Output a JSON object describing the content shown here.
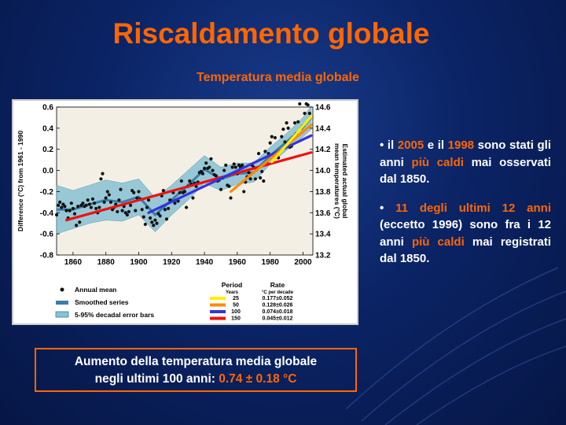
{
  "slide": {
    "title": "Riscaldamento globale",
    "subtitle": "Temperatura media globale"
  },
  "bullets": [
    {
      "parts": [
        {
          "text": "• il ",
          "hl": false
        },
        {
          "text": "2005",
          "hl": true
        },
        {
          "text": " e il ",
          "hl": false
        },
        {
          "text": "1998",
          "hl": true
        },
        {
          "text": " sono stati gli anni ",
          "hl": false
        },
        {
          "text": "più caldi",
          "hl": true
        },
        {
          "text": " mai osservati dal 1850.",
          "hl": false
        }
      ]
    },
    {
      "parts": [
        {
          "text": "• ",
          "hl": false
        },
        {
          "text": "11 degli ultimi 12 anni",
          "hl": true
        },
        {
          "text": " (eccetto 1996) sono fra i 12 anni ",
          "hl": false
        },
        {
          "text": "più caldi",
          "hl": true
        },
        {
          "text": " mai registrati dal 1850.",
          "hl": false
        }
      ]
    }
  ],
  "callout": {
    "line1": "Aumento della temperatura media globale",
    "line2": "negli ultimi 100 anni: ",
    "value": "0.74 ± 0.18 °C"
  },
  "chart_data": {
    "type": "scatter",
    "ylabel_left": "Difference (°C) from 1961 - 1990",
    "ylabel_right": "Estimated actual global mean temperatures (°C)",
    "xlim": [
      1850,
      2006
    ],
    "ylim": [
      -0.8,
      0.6
    ],
    "xticks": [
      1860,
      1880,
      1900,
      1920,
      1940,
      1960,
      1980,
      2000
    ],
    "yticks_left": [
      -0.8,
      -0.6,
      -0.4,
      -0.2,
      0.0,
      0.2,
      0.4,
      0.6
    ],
    "yticks_right": [
      13.2,
      13.4,
      13.6,
      13.8,
      14.0,
      14.2,
      14.4,
      14.6
    ],
    "colors": {
      "points": "#111111",
      "smooth": "#3a7fa8",
      "band": "#88c2d4",
      "plot_bg": "#f4efe4"
    },
    "annual_mean": {
      "x": [
        1850,
        1851,
        1852,
        1853,
        1854,
        1855,
        1856,
        1857,
        1858,
        1859,
        1860,
        1861,
        1862,
        1863,
        1864,
        1865,
        1866,
        1867,
        1868,
        1869,
        1870,
        1871,
        1872,
        1873,
        1874,
        1875,
        1876,
        1877,
        1878,
        1879,
        1880,
        1881,
        1882,
        1883,
        1884,
        1885,
        1886,
        1887,
        1888,
        1889,
        1890,
        1891,
        1892,
        1893,
        1894,
        1895,
        1896,
        1897,
        1898,
        1899,
        1900,
        1901,
        1902,
        1903,
        1904,
        1905,
        1906,
        1907,
        1908,
        1909,
        1910,
        1911,
        1912,
        1913,
        1914,
        1915,
        1916,
        1917,
        1918,
        1919,
        1920,
        1921,
        1922,
        1923,
        1924,
        1925,
        1926,
        1927,
        1928,
        1929,
        1930,
        1931,
        1932,
        1933,
        1934,
        1935,
        1936,
        1937,
        1938,
        1939,
        1940,
        1941,
        1942,
        1943,
        1944,
        1945,
        1946,
        1947,
        1948,
        1949,
        1950,
        1951,
        1952,
        1953,
        1954,
        1955,
        1956,
        1957,
        1958,
        1959,
        1960,
        1961,
        1962,
        1963,
        1964,
        1965,
        1966,
        1967,
        1968,
        1969,
        1970,
        1971,
        1972,
        1973,
        1974,
        1975,
        1976,
        1977,
        1978,
        1979,
        1980,
        1981,
        1982,
        1983,
        1984,
        1985,
        1986,
        1987,
        1988,
        1989,
        1990,
        1991,
        1992,
        1993,
        1994,
        1995,
        1996,
        1997,
        1998,
        1999,
        2000,
        2001,
        2002,
        2003,
        2004,
        2005
      ],
      "y": [
        -0.42,
        -0.33,
        -0.3,
        -0.35,
        -0.32,
        -0.34,
        -0.38,
        -0.45,
        -0.38,
        -0.31,
        -0.36,
        -0.41,
        -0.52,
        -0.34,
        -0.49,
        -0.33,
        -0.31,
        -0.34,
        -0.33,
        -0.28,
        -0.32,
        -0.35,
        -0.27,
        -0.31,
        -0.36,
        -0.4,
        -0.35,
        -0.08,
        -0.03,
        -0.3,
        -0.26,
        -0.2,
        -0.23,
        -0.3,
        -0.37,
        -0.35,
        -0.32,
        -0.39,
        -0.28,
        -0.18,
        -0.38,
        -0.34,
        -0.4,
        -0.42,
        -0.39,
        -0.33,
        -0.19,
        -0.21,
        -0.38,
        -0.26,
        -0.2,
        -0.27,
        -0.37,
        -0.44,
        -0.51,
        -0.35,
        -0.28,
        -0.45,
        -0.49,
        -0.52,
        -0.47,
        -0.5,
        -0.41,
        -0.43,
        -0.24,
        -0.19,
        -0.37,
        -0.46,
        -0.36,
        -0.28,
        -0.29,
        -0.21,
        -0.31,
        -0.28,
        -0.29,
        -0.21,
        -0.1,
        -0.21,
        -0.2,
        -0.35,
        -0.15,
        -0.1,
        -0.13,
        -0.26,
        -0.12,
        -0.15,
        -0.11,
        -0.02,
        -0.01,
        -0.03,
        0.02,
        0.07,
        0.02,
        0.03,
        0.11,
        0.0,
        -0.04,
        -0.05,
        -0.1,
        -0.09,
        -0.18,
        -0.07,
        0.0,
        0.05,
        -0.14,
        -0.15,
        -0.26,
        0.03,
        0.06,
        0.03,
        -0.03,
        0.05,
        0.03,
        0.05,
        -0.2,
        -0.11,
        -0.06,
        -0.02,
        -0.08,
        0.05,
        0.03,
        -0.08,
        0.01,
        0.16,
        -0.07,
        -0.01,
        -0.1,
        0.18,
        0.07,
        0.16,
        0.26,
        0.32,
        0.14,
        0.31,
        0.16,
        0.12,
        0.18,
        0.32,
        0.39,
        0.27,
        0.45,
        0.4,
        0.22,
        0.23,
        0.31,
        0.45,
        0.35,
        0.46,
        0.63,
        0.4,
        0.42,
        0.54,
        0.63,
        0.62,
        0.54,
        0.68
      ]
    },
    "smoothed_series": {
      "x": [
        1850,
        1860,
        1870,
        1880,
        1890,
        1900,
        1910,
        1920,
        1930,
        1940,
        1950,
        1960,
        1970,
        1980,
        1990,
        2000,
        2005
      ],
      "y": [
        -0.37,
        -0.37,
        -0.32,
        -0.28,
        -0.3,
        -0.25,
        -0.42,
        -0.28,
        -0.14,
        0.01,
        -0.08,
        -0.03,
        -0.02,
        0.14,
        0.27,
        0.41,
        0.5
      ]
    },
    "error_band": {
      "x": [
        1850,
        1860,
        1870,
        1880,
        1890,
        1900,
        1910,
        1920,
        1930,
        1940,
        1950,
        1960,
        1970,
        1980,
        1990,
        2000,
        2005
      ],
      "low": [
        -0.6,
        -0.55,
        -0.5,
        -0.47,
        -0.48,
        -0.42,
        -0.58,
        -0.42,
        -0.28,
        -0.12,
        -0.19,
        -0.13,
        -0.11,
        0.06,
        0.19,
        0.32,
        0.39
      ],
      "high": [
        -0.14,
        -0.19,
        -0.14,
        -0.09,
        -0.12,
        -0.08,
        -0.26,
        -0.14,
        0.0,
        0.14,
        0.03,
        0.07,
        0.07,
        0.22,
        0.35,
        0.5,
        0.61
      ]
    },
    "trends": [
      {
        "period": "25",
        "rate": "0.177±0.052",
        "color": "#ffee00",
        "x": [
          1981,
          2005
        ],
        "y": [
          0.08,
          0.51
        ]
      },
      {
        "period": "50",
        "rate": "0.128±0.026",
        "color": "#ff8a00",
        "x": [
          1956,
          2005
        ],
        "y": [
          -0.2,
          0.43
        ]
      },
      {
        "period": "100",
        "rate": "0.074±0.018",
        "color": "#3333dd",
        "x": [
          1906,
          2005
        ],
        "y": [
          -0.4,
          0.33
        ]
      },
      {
        "period": "150",
        "rate": "0.045±0.012",
        "color": "#ee1111",
        "x": [
          1856,
          2005
        ],
        "y": [
          -0.47,
          0.17
        ]
      }
    ],
    "legend": {
      "items": [
        "Annual mean",
        "Smoothed series",
        "5-95% decadal error bars"
      ],
      "period_header": "Period",
      "rate_header": "Rate",
      "years_label": "Years",
      "unit_label": "°C  per decade"
    }
  }
}
